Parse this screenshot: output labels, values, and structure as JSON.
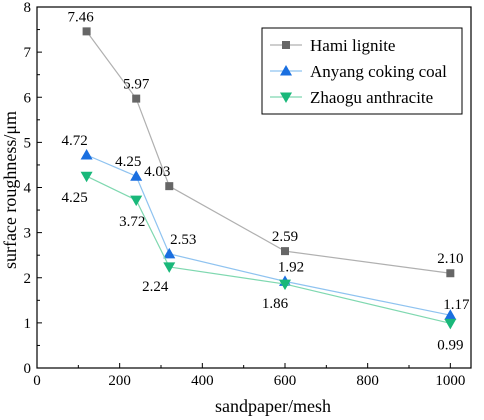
{
  "chart_data": {
    "type": "line",
    "xlabel": "sandpaper/mesh",
    "ylabel": "surface roughness/μm",
    "xlim": [
      0,
      1050
    ],
    "ylim": [
      0,
      8
    ],
    "xticks": [
      "0",
      "200",
      "400",
      "600",
      "800",
      "1000"
    ],
    "yticks": [
      "0",
      "1",
      "2",
      "3",
      "4",
      "5",
      "6",
      "7",
      "8"
    ],
    "x": [
      120,
      240,
      320,
      600,
      1000
    ],
    "grid": false,
    "legend_position": "top-right",
    "series": [
      {
        "name": "Hami lignite",
        "values": [
          7.46,
          5.97,
          4.03,
          2.59,
          2.1
        ],
        "labels": [
          "7.46",
          "5.97",
          "4.03",
          "2.59",
          "2.10"
        ],
        "marker": "square",
        "marker_color": "#666666",
        "line_color": "#b0b0b0"
      },
      {
        "name": "Anyang coking coal",
        "values": [
          4.72,
          4.25,
          2.53,
          1.92,
          1.17
        ],
        "labels": [
          "4.72",
          "4.25",
          "2.53",
          "1.92",
          "1.17"
        ],
        "marker": "triangle-up",
        "marker_color": "#1a6fe0",
        "line_color": "#8fc3f0"
      },
      {
        "name": "Zhaogu anthracite",
        "values": [
          4.25,
          3.72,
          2.24,
          1.86,
          0.99
        ],
        "labels": [
          "4.25",
          "3.72",
          "2.24",
          "1.86",
          "0.99"
        ],
        "marker": "triangle-down",
        "marker_color": "#19b87a",
        "line_color": "#7fd8b0"
      }
    ]
  }
}
